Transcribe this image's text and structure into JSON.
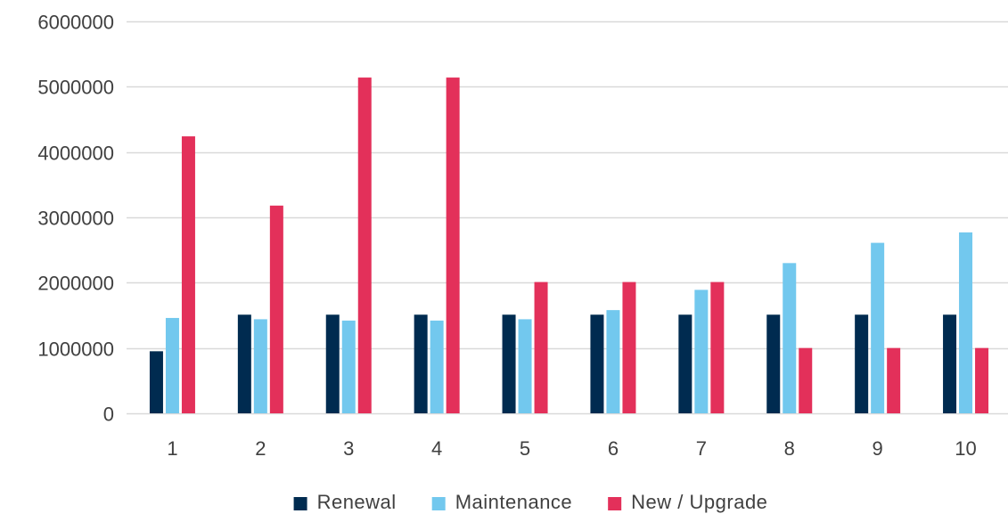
{
  "chart_data": {
    "type": "bar",
    "title": "",
    "xlabel": "",
    "ylabel": "",
    "categories": [
      "1",
      "2",
      "3",
      "4",
      "5",
      "6",
      "7",
      "8",
      "9",
      "10"
    ],
    "series": [
      {
        "name": "Renewal",
        "color": "#002b50",
        "values": [
          950000,
          1510000,
          1510000,
          1510000,
          1510000,
          1510000,
          1510000,
          1510000,
          1510000,
          1510000
        ]
      },
      {
        "name": "Maintenance",
        "color": "#72c8ee",
        "values": [
          1460000,
          1440000,
          1420000,
          1420000,
          1440000,
          1580000,
          1890000,
          2300000,
          2610000,
          2770000
        ]
      },
      {
        "name": "New / Upgrade",
        "color": "#e3305a",
        "values": [
          4240000,
          3180000,
          5140000,
          5140000,
          2010000,
          2010000,
          2010000,
          1000000,
          1000000,
          1000000
        ]
      }
    ],
    "ylim": [
      0,
      6000000
    ],
    "yticks": [
      "0",
      "1000000",
      "2000000",
      "3000000",
      "4000000",
      "5000000",
      "6000000"
    ],
    "ytick_values": [
      0,
      1000000,
      2000000,
      3000000,
      4000000,
      5000000,
      6000000
    ],
    "grid": true,
    "gridline_color": "#d9d9d9",
    "legend_position": "bottom"
  }
}
